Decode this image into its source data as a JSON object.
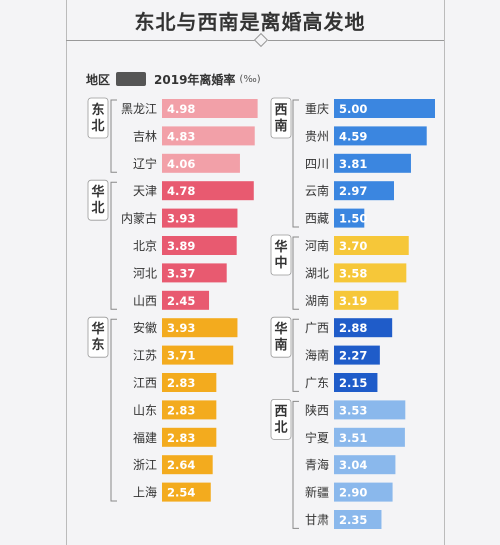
{
  "title": "东北与西南是离婚高发地",
  "legend": {
    "region_label": "地区",
    "series_label": "2019年离婚率",
    "unit": "(‰)"
  },
  "colors": {
    "northeast": "#f2a0a8",
    "north": "#e85a70",
    "east": "#f3ab1e",
    "southwest": "#3b86e0",
    "central": "#f6c739",
    "south": "#1f5cc9",
    "northwest": "#8ab8ec"
  },
  "chart_data": {
    "type": "bar",
    "orientation": "horizontal",
    "title": "东北与西南是离婚高发地",
    "series_name": "2019年离婚率",
    "unit": "‰",
    "groups": [
      {
        "name": "东北",
        "column": "left",
        "color_key": "northeast",
        "items": [
          {
            "province": "黑龙江",
            "value": 4.98
          },
          {
            "province": "吉林",
            "value": 4.83
          },
          {
            "province": "辽宁",
            "value": 4.06
          }
        ]
      },
      {
        "name": "华北",
        "column": "left",
        "color_key": "north",
        "items": [
          {
            "province": "天津",
            "value": 4.78
          },
          {
            "province": "内蒙古",
            "value": 3.93
          },
          {
            "province": "北京",
            "value": 3.89
          },
          {
            "province": "河北",
            "value": 3.37
          },
          {
            "province": "山西",
            "value": 2.45
          }
        ]
      },
      {
        "name": "华东",
        "column": "left",
        "color_key": "east",
        "items": [
          {
            "province": "安徽",
            "value": 3.93
          },
          {
            "province": "江苏",
            "value": 3.71
          },
          {
            "province": "江西",
            "value": 2.83
          },
          {
            "province": "山东",
            "value": 2.83
          },
          {
            "province": "福建",
            "value": 2.83
          },
          {
            "province": "浙江",
            "value": 2.64
          },
          {
            "province": "上海",
            "value": 2.54
          }
        ]
      },
      {
        "name": "西南",
        "column": "right",
        "color_key": "southwest",
        "items": [
          {
            "province": "重庆",
            "value": 5.0
          },
          {
            "province": "贵州",
            "value": 4.59
          },
          {
            "province": "四川",
            "value": 3.81
          },
          {
            "province": "云南",
            "value": 2.97
          },
          {
            "province": "西藏",
            "value": 1.5
          }
        ]
      },
      {
        "name": "华中",
        "column": "right",
        "color_key": "central",
        "items": [
          {
            "province": "河南",
            "value": 3.7
          },
          {
            "province": "湖北",
            "value": 3.58
          },
          {
            "province": "湖南",
            "value": 3.19
          }
        ]
      },
      {
        "name": "华南",
        "column": "right",
        "color_key": "south",
        "items": [
          {
            "province": "广西",
            "value": 2.88
          },
          {
            "province": "海南",
            "value": 2.27
          },
          {
            "province": "广东",
            "value": 2.15
          }
        ]
      },
      {
        "name": "西北",
        "column": "right",
        "color_key": "northwest",
        "items": [
          {
            "province": "陕西",
            "value": 3.53
          },
          {
            "province": "宁夏",
            "value": 3.51
          },
          {
            "province": "青海",
            "value": 3.04
          },
          {
            "province": "新疆",
            "value": 2.9
          },
          {
            "province": "甘肃",
            "value": 2.35
          }
        ]
      }
    ]
  }
}
